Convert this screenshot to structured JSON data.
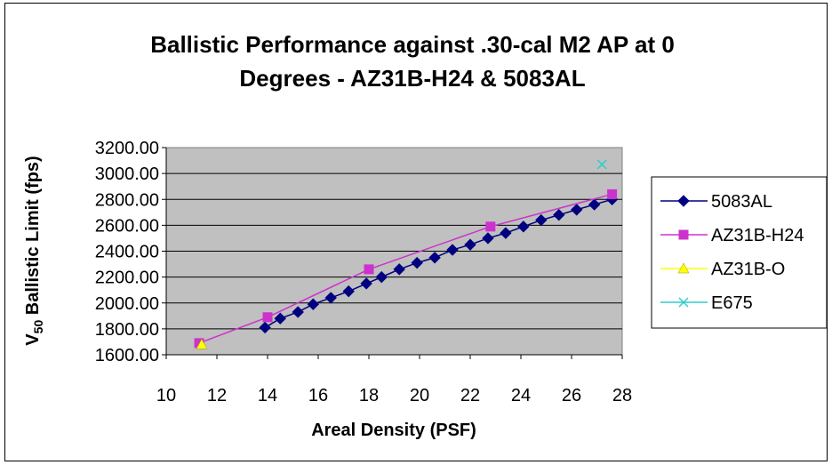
{
  "chart_data": {
    "type": "line",
    "title_lines": [
      "Ballistic Performance against .30-cal M2 AP at 0",
      "Degrees - AZ31B-H24 & 5083AL"
    ],
    "xlabel": "Areal Density (PSF)",
    "ylabel_main": "V",
    "ylabel_sub": "50",
    "ylabel_rest": " Ballistic Limit (fps)",
    "xlim": [
      10,
      28
    ],
    "ylim": [
      1600,
      3200
    ],
    "x_ticks": [
      "10",
      "12",
      "14",
      "16",
      "18",
      "20",
      "22",
      "24",
      "26",
      "28"
    ],
    "y_ticks": [
      "1600.00",
      "1800.00",
      "2000.00",
      "2200.00",
      "2400.00",
      "2600.00",
      "2800.00",
      "3000.00",
      "3200.00"
    ],
    "grid": "horizontal",
    "plot_background": "#C0C0C0",
    "legend_position": "right",
    "series": [
      {
        "name": "5083AL",
        "color": "#000080",
        "marker": "diamond",
        "line": true,
        "x": [
          13.9,
          14.5,
          15.2,
          15.8,
          16.5,
          17.2,
          17.9,
          18.5,
          19.2,
          19.9,
          20.6,
          21.3,
          22.0,
          22.7,
          23.4,
          24.1,
          24.8,
          25.5,
          26.2,
          26.9,
          27.6
        ],
        "y": [
          1810,
          1880,
          1930,
          1990,
          2040,
          2090,
          2150,
          2200,
          2260,
          2310,
          2350,
          2410,
          2450,
          2500,
          2540,
          2590,
          2640,
          2680,
          2720,
          2760,
          2800
        ]
      },
      {
        "name": "AZ31B-H24",
        "color": "#CC33CC",
        "marker": "square",
        "line": true,
        "x": [
          11.3,
          14.0,
          18.0,
          22.8,
          27.6
        ],
        "y": [
          1690,
          1890,
          2260,
          2590,
          2840
        ]
      },
      {
        "name": "AZ31B-O",
        "color": "#FFFF00",
        "marker": "triangle",
        "line": false,
        "x": [
          11.4
        ],
        "y": [
          1680
        ]
      },
      {
        "name": "E675",
        "color": "#33CCCC",
        "marker": "x",
        "line": false,
        "x": [
          27.2
        ],
        "y": [
          3070
        ]
      }
    ]
  }
}
